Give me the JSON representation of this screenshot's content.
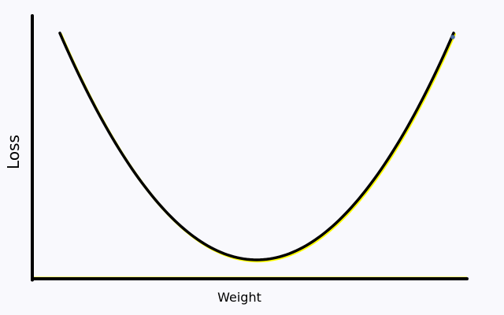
{
  "chart_data": {
    "type": "line",
    "title": "",
    "xlabel": "Weight",
    "ylabel": "Loss",
    "grid": false,
    "legend": "none",
    "axes_ticks": false,
    "series": [
      {
        "color": "#000000",
        "highlight_color": "#ffff00",
        "x": [
          -1.0,
          -0.75,
          -0.5,
          -0.25,
          0.0,
          0.25,
          0.5,
          0.75,
          1.0
        ],
        "y": [
          1.0,
          0.5625,
          0.25,
          0.0625,
          0.0,
          0.0625,
          0.25,
          0.5625,
          1.0
        ]
      }
    ],
    "xlim": [
      -1.0,
      1.0
    ],
    "ylim": [
      -0.08,
      1.0
    ],
    "marker": {
      "x": 1.0,
      "y": 1.0,
      "color": "#4a6fa5"
    },
    "colors": {
      "background": "#f9f9fd",
      "axis": "#000000",
      "highlight": "#ffff00"
    }
  }
}
